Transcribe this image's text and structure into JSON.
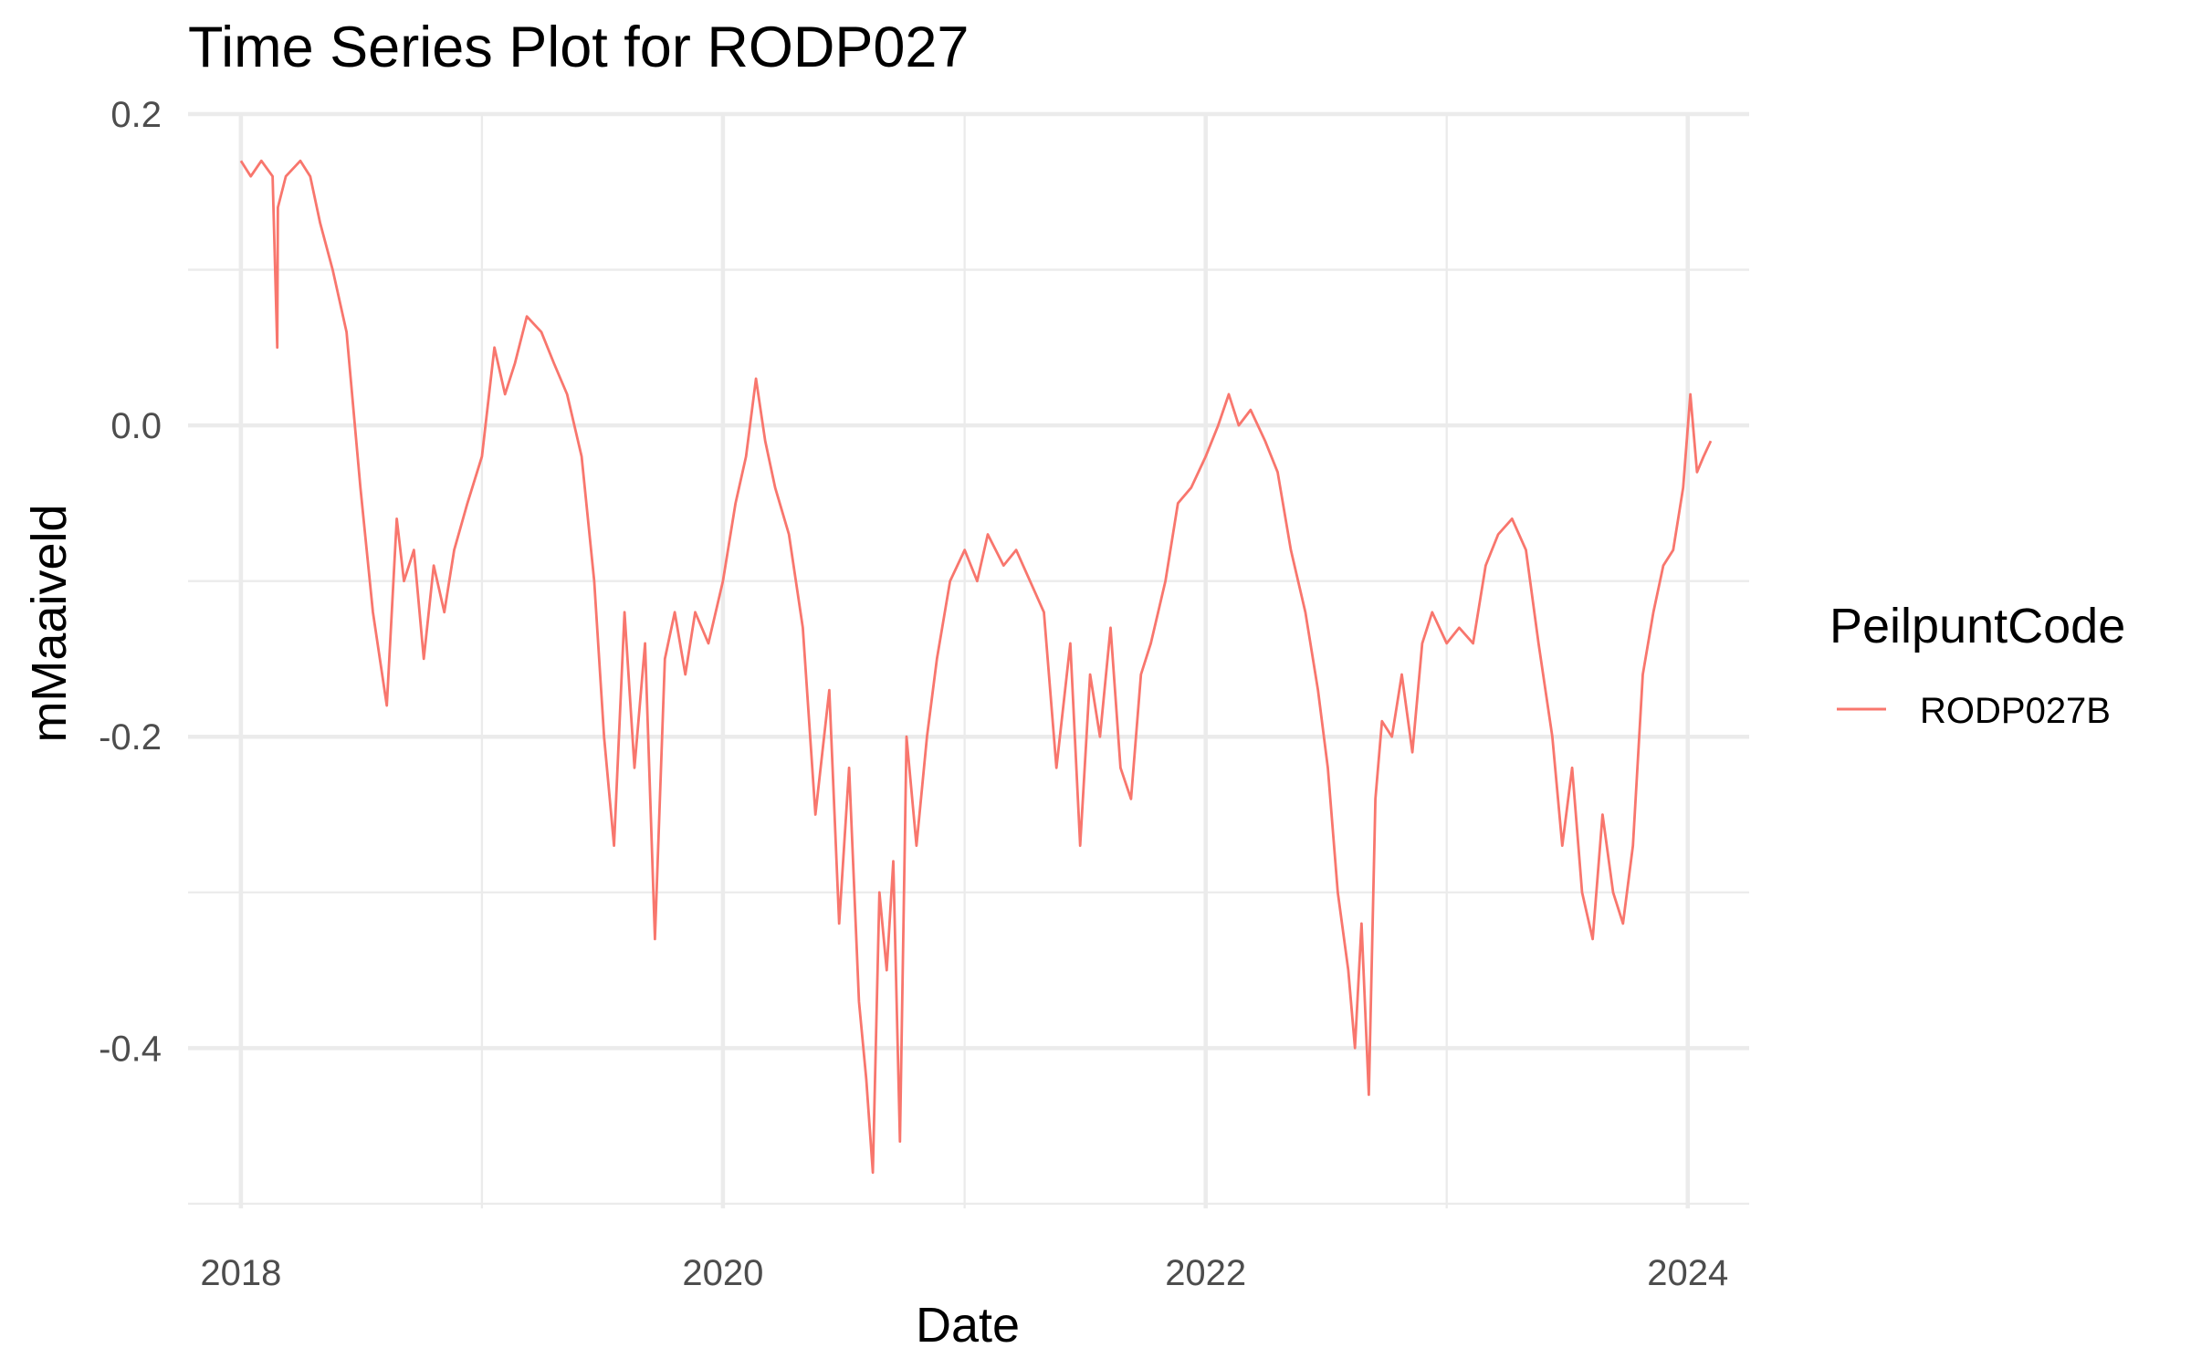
{
  "chart_data": {
    "type": "line",
    "title": "Time Series Plot for RODP027",
    "xlabel": "Date",
    "ylabel": "mMaaiveld",
    "x_ticks": [
      "2018",
      "2020",
      "2022",
      "2024"
    ],
    "y_ticks": [
      "0.2",
      "0.0",
      "-0.2",
      "-0.4"
    ],
    "xlim": [
      "2017-10-13",
      "2024-04-03"
    ],
    "ylim": [
      -0.503,
      0.2
    ],
    "grid": true,
    "legend": {
      "title": "PeilpuntCode",
      "position": "right"
    },
    "colors": {
      "series": "#f8766d",
      "grid": "#ebebeb",
      "tick_text": "#4d4d4d"
    },
    "series": [
      {
        "name": "RODP027B",
        "x": [
          "2018-01-01",
          "2018-01-16",
          "2018-02-01",
          "2018-02-18",
          "2018-02-25",
          "2018-02-26",
          "2018-03-10",
          "2018-04-01",
          "2018-04-16",
          "2018-05-01",
          "2018-05-20",
          "2018-06-10",
          "2018-07-01",
          "2018-07-20",
          "2018-08-10",
          "2018-08-25",
          "2018-09-05",
          "2018-09-20",
          "2018-10-05",
          "2018-10-20",
          "2018-11-05",
          "2018-11-20",
          "2018-12-10",
          "2019-01-01",
          "2019-01-20",
          "2019-02-05",
          "2019-02-20",
          "2019-03-10",
          "2019-04-01",
          "2019-04-20",
          "2019-05-10",
          "2019-06-01",
          "2019-06-20",
          "2019-07-05",
          "2019-07-20",
          "2019-08-05",
          "2019-08-20",
          "2019-09-05",
          "2019-09-20",
          "2019-10-05",
          "2019-10-20",
          "2019-11-05",
          "2019-11-20",
          "2019-12-10",
          "2020-01-01",
          "2020-01-20",
          "2020-02-05",
          "2020-02-20",
          "2020-03-05",
          "2020-03-20",
          "2020-04-10",
          "2020-05-01",
          "2020-05-20",
          "2020-06-10",
          "2020-06-25",
          "2020-07-10",
          "2020-07-25",
          "2020-08-05",
          "2020-08-15",
          "2020-08-25",
          "2020-09-05",
          "2020-09-15",
          "2020-09-25",
          "2020-10-05",
          "2020-10-20",
          "2020-11-05",
          "2020-11-20",
          "2020-12-10",
          "2021-01-01",
          "2021-01-20",
          "2021-02-05",
          "2021-03-01",
          "2021-03-20",
          "2021-04-10",
          "2021-05-01",
          "2021-05-20",
          "2021-06-10",
          "2021-06-25",
          "2021-07-10",
          "2021-07-25",
          "2021-08-10",
          "2021-08-25",
          "2021-09-10",
          "2021-09-25",
          "2021-10-10",
          "2021-11-01",
          "2021-11-20",
          "2021-12-10",
          "2022-01-01",
          "2022-01-20",
          "2022-02-05",
          "2022-02-20",
          "2022-03-10",
          "2022-04-01",
          "2022-04-20",
          "2022-05-10",
          "2022-06-01",
          "2022-06-20",
          "2022-07-05",
          "2022-07-20",
          "2022-08-05",
          "2022-08-15",
          "2022-08-25",
          "2022-09-05",
          "2022-09-15",
          "2022-09-25",
          "2022-10-10",
          "2022-10-25",
          "2022-11-10",
          "2022-11-25",
          "2022-12-10",
          "2023-01-01",
          "2023-01-20",
          "2023-02-10",
          "2023-03-01",
          "2023-03-20",
          "2023-04-10",
          "2023-05-01",
          "2023-05-20",
          "2023-06-10",
          "2023-06-25",
          "2023-07-10",
          "2023-07-25",
          "2023-08-10",
          "2023-08-25",
          "2023-09-10",
          "2023-09-25",
          "2023-10-10",
          "2023-10-25",
          "2023-11-10",
          "2023-11-25",
          "2023-12-10",
          "2023-12-25",
          "2024-01-05",
          "2024-01-15",
          "2024-01-25",
          "2024-02-05"
        ],
        "values": [
          0.17,
          0.16,
          0.17,
          0.16,
          0.05,
          0.14,
          0.16,
          0.17,
          0.16,
          0.13,
          0.1,
          0.06,
          -0.04,
          -0.12,
          -0.18,
          -0.06,
          -0.1,
          -0.08,
          -0.15,
          -0.09,
          -0.12,
          -0.08,
          -0.05,
          -0.02,
          0.05,
          0.02,
          0.04,
          0.07,
          0.06,
          0.04,
          0.02,
          -0.02,
          -0.1,
          -0.2,
          -0.27,
          -0.12,
          -0.22,
          -0.14,
          -0.33,
          -0.15,
          -0.12,
          -0.16,
          -0.12,
          -0.14,
          -0.1,
          -0.05,
          -0.02,
          0.03,
          -0.01,
          -0.04,
          -0.07,
          -0.13,
          -0.25,
          -0.17,
          -0.32,
          -0.22,
          -0.37,
          -0.42,
          -0.48,
          -0.3,
          -0.35,
          -0.28,
          -0.46,
          -0.2,
          -0.27,
          -0.2,
          -0.15,
          -0.1,
          -0.08,
          -0.1,
          -0.07,
          -0.09,
          -0.08,
          -0.1,
          -0.12,
          -0.22,
          -0.14,
          -0.27,
          -0.16,
          -0.2,
          -0.13,
          -0.22,
          -0.24,
          -0.16,
          -0.14,
          -0.1,
          -0.05,
          -0.04,
          -0.02,
          0.0,
          0.02,
          0.0,
          0.01,
          -0.01,
          -0.03,
          -0.08,
          -0.12,
          -0.17,
          -0.22,
          -0.3,
          -0.35,
          -0.4,
          -0.32,
          -0.43,
          -0.24,
          -0.19,
          -0.2,
          -0.16,
          -0.21,
          -0.14,
          -0.12,
          -0.14,
          -0.13,
          -0.14,
          -0.09,
          -0.07,
          -0.06,
          -0.08,
          -0.14,
          -0.2,
          -0.27,
          -0.22,
          -0.3,
          -0.33,
          -0.25,
          -0.3,
          -0.32,
          -0.27,
          -0.16,
          -0.12,
          -0.09,
          -0.08,
          -0.04,
          0.02,
          -0.03,
          -0.02,
          -0.01
        ]
      }
    ]
  }
}
